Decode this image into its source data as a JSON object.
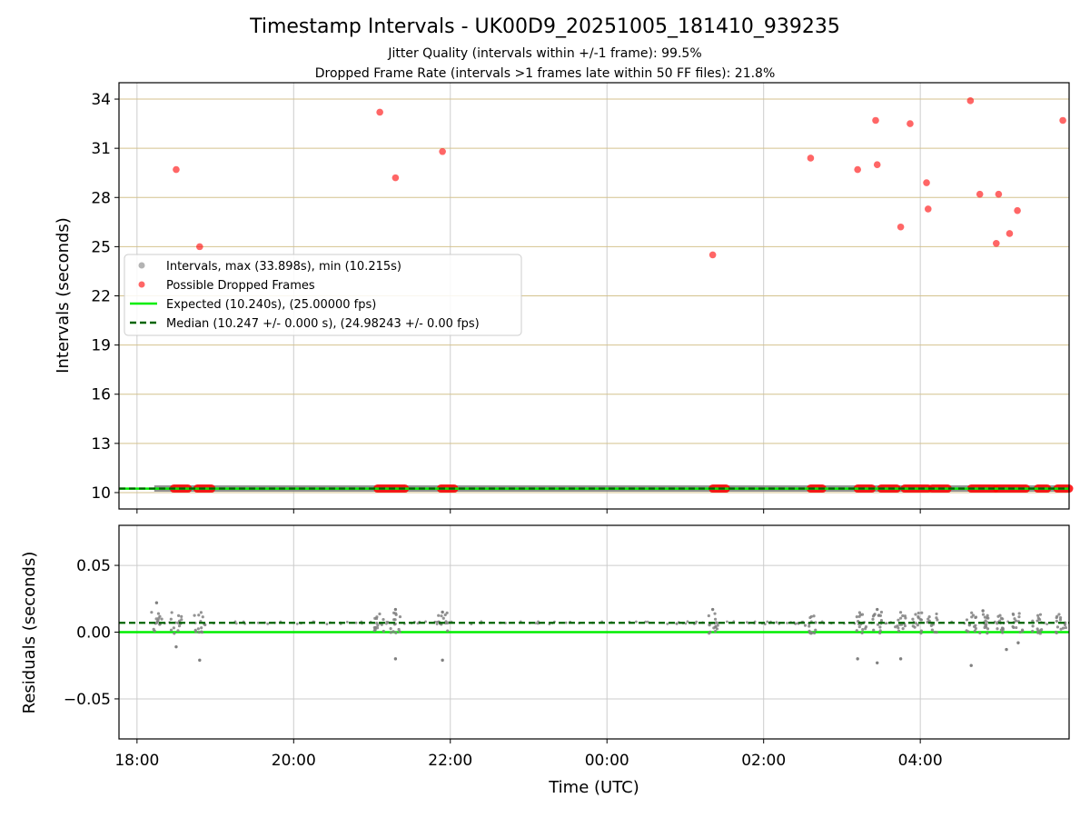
{
  "chart_data": [
    {
      "type": "scatter",
      "panel": "intervals",
      "title": "Timestamp Intervals - UK00D9_20251005_181410_939235",
      "subtitle_jitter": "Jitter Quality (intervals within +/-1 frame): 99.5%",
      "subtitle_dropped": "Dropped Frame Rate (intervals >1 frames late within 50 FF files): 21.8%",
      "ylabel": "Intervals (seconds)",
      "ylim": [
        9.0,
        35.0
      ],
      "yticks": [
        10,
        13,
        16,
        19,
        22,
        25,
        28,
        31,
        34
      ],
      "ytick_labels": [
        "10",
        "13",
        "16",
        "19",
        "22",
        "25",
        "28",
        "31",
        "34"
      ],
      "xlim_hours": [
        17.77,
        29.9
      ],
      "xticks_hours": [
        18,
        20,
        22,
        24,
        26,
        28
      ],
      "grid": true,
      "legend_position": "center-left",
      "legend": [
        {
          "label": "Intervals, max (33.898s), min (10.215s)",
          "style": "gray-dot"
        },
        {
          "label": "Possible Dropped Frames",
          "style": "red-dot"
        },
        {
          "label": "Expected (10.240s), (25.00000 fps)",
          "style": "green-solid"
        },
        {
          "label": "Median (10.247 +/- 0.000 s), (24.98243 +/- 0.00 fps)",
          "style": "darkgreen-dashed"
        }
      ],
      "expected_value": 10.24,
      "median_value": 10.247,
      "intervals_band": {
        "x_start": 18.22,
        "x_end": 29.9,
        "value": 10.247
      },
      "dropped_frames_outliers": [
        {
          "x": 18.5,
          "y": 29.7
        },
        {
          "x": 18.8,
          "y": 25.0
        },
        {
          "x": 21.1,
          "y": 33.2
        },
        {
          "x": 21.3,
          "y": 29.2
        },
        {
          "x": 21.9,
          "y": 30.8
        },
        {
          "x": 25.35,
          "y": 24.5
        },
        {
          "x": 26.6,
          "y": 30.4
        },
        {
          "x": 27.2,
          "y": 29.7
        },
        {
          "x": 27.43,
          "y": 32.7
        },
        {
          "x": 27.45,
          "y": 30.0
        },
        {
          "x": 27.75,
          "y": 26.2
        },
        {
          "x": 27.87,
          "y": 32.5
        },
        {
          "x": 28.08,
          "y": 28.9
        },
        {
          "x": 28.1,
          "y": 27.3
        },
        {
          "x": 28.64,
          "y": 33.9
        },
        {
          "x": 28.76,
          "y": 28.2
        },
        {
          "x": 28.97,
          "y": 25.2
        },
        {
          "x": 29.0,
          "y": 28.2
        },
        {
          "x": 29.14,
          "y": 25.8
        },
        {
          "x": 29.24,
          "y": 27.2
        },
        {
          "x": 29.82,
          "y": 32.7
        }
      ],
      "dropped_frames_baseline_clusters": [
        [
          18.47,
          18.65
        ],
        [
          18.77,
          18.95
        ],
        [
          21.07,
          21.42
        ],
        [
          21.88,
          22.05
        ],
        [
          25.35,
          25.52
        ],
        [
          26.6,
          26.75
        ],
        [
          27.2,
          27.38
        ],
        [
          27.5,
          27.7
        ],
        [
          27.8,
          28.1
        ],
        [
          28.15,
          28.35
        ],
        [
          28.65,
          28.95
        ],
        [
          28.98,
          29.35
        ],
        [
          29.5,
          29.62
        ],
        [
          29.75,
          29.9
        ]
      ]
    },
    {
      "type": "scatter",
      "panel": "residuals",
      "ylabel": "Residuals (seconds)",
      "xlabel": "Time (UTC)",
      "ylim": [
        -0.08,
        0.08
      ],
      "yticks": [
        0.05,
        0.0,
        -0.05
      ],
      "ytick_labels": [
        "0.05",
        "0.00",
        "−0.05"
      ],
      "xlim_hours": [
        17.77,
        29.9
      ],
      "xticks_hours": [
        18,
        20,
        22,
        24,
        26,
        28
      ],
      "xtick_labels": [
        "18:00",
        "20:00",
        "22:00",
        "00:00",
        "02:00",
        "04:00"
      ],
      "grid": true,
      "expected_value": 0.0,
      "median_value": 0.007,
      "residual_clusters": [
        18.25,
        18.5,
        18.8,
        21.1,
        21.3,
        21.9,
        25.35,
        26.6,
        27.25,
        27.45,
        27.75,
        27.95,
        28.15,
        28.65,
        28.8,
        29.05,
        29.25,
        29.5,
        29.8
      ],
      "residual_outliers": [
        {
          "x": 18.25,
          "y": 0.022
        },
        {
          "x": 18.5,
          "y": -0.011
        },
        {
          "x": 18.8,
          "y": -0.021
        },
        {
          "x": 21.3,
          "y": 0.017
        },
        {
          "x": 21.3,
          "y": -0.02
        },
        {
          "x": 21.9,
          "y": 0.015
        },
        {
          "x": 21.9,
          "y": -0.021
        },
        {
          "x": 25.35,
          "y": 0.017
        },
        {
          "x": 27.2,
          "y": -0.02
        },
        {
          "x": 27.45,
          "y": 0.017
        },
        {
          "x": 27.45,
          "y": -0.023
        },
        {
          "x": 27.75,
          "y": -0.02
        },
        {
          "x": 28.65,
          "y": -0.025
        },
        {
          "x": 28.8,
          "y": 0.016
        },
        {
          "x": 29.1,
          "y": -0.013
        },
        {
          "x": 29.25,
          "y": -0.008
        }
      ]
    }
  ],
  "colors": {
    "dropped": "#ff0000",
    "intervals": "#808080",
    "expected": "#00ee00",
    "median": "#006400",
    "hgrid_top": "#d4c28e",
    "grid": "#cccccc"
  }
}
